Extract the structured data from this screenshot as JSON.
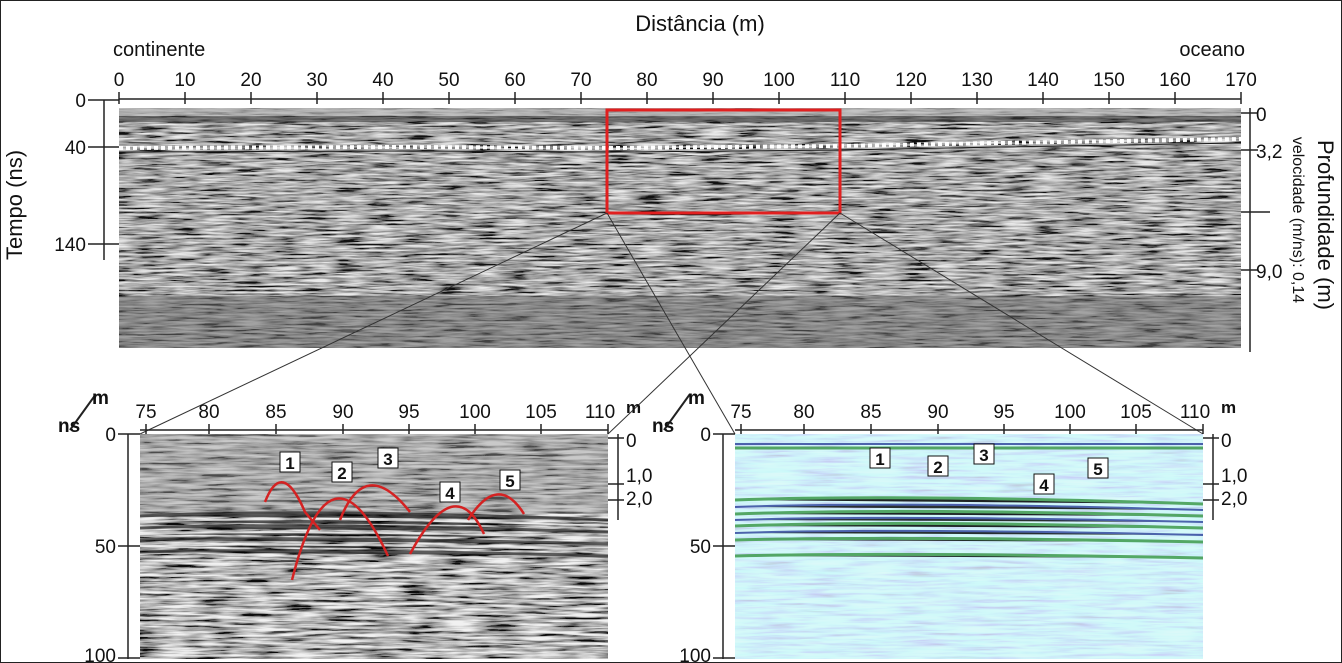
{
  "colors": {
    "roi_box": "#e11f1f",
    "hyperbola": "#d42222",
    "radar_gray": "#6e6e6e",
    "processed_green": "#3e9a4c",
    "processed_blue": "#2b3f9a"
  },
  "main_profile": {
    "top_axis_title": "Distância (m)",
    "left_end_label": "continente",
    "right_end_label": "oceano",
    "distance_ticks": [
      "0",
      "10",
      "20",
      "30",
      "40",
      "50",
      "60",
      "70",
      "80",
      "90",
      "100",
      "110",
      "120",
      "130",
      "140",
      "150",
      "160",
      "170"
    ],
    "time_axis_title": "Tempo (ns)",
    "time_ticks": [
      "0",
      "40",
      "140"
    ],
    "depth_axis_title": "Profundidade (m)",
    "depth_ticks": [
      "0",
      "3,2",
      "9,0"
    ],
    "velocity_note": "velocidade (m/ns): 0,14"
  },
  "detail_left": {
    "unit_top": "m",
    "unit_left": "ns",
    "distance_ticks": [
      "75",
      "80",
      "85",
      "90",
      "95",
      "100",
      "105",
      "110"
    ],
    "time_ticks": [
      "0",
      "50",
      "100"
    ],
    "depth_unit": "m",
    "depth_ticks": [
      "0",
      "1,0",
      "2,0"
    ],
    "targets": [
      "1",
      "2",
      "3",
      "4",
      "5"
    ]
  },
  "detail_right": {
    "unit_top": "m",
    "unit_left": "ns",
    "distance_ticks": [
      "75",
      "80",
      "85",
      "90",
      "95",
      "100",
      "105",
      "110"
    ],
    "time_ticks": [
      "0",
      "50",
      "100"
    ],
    "depth_unit": "m",
    "depth_ticks": [
      "0",
      "1,0",
      "2,0"
    ],
    "targets": [
      "1",
      "2",
      "3",
      "4",
      "5"
    ]
  }
}
